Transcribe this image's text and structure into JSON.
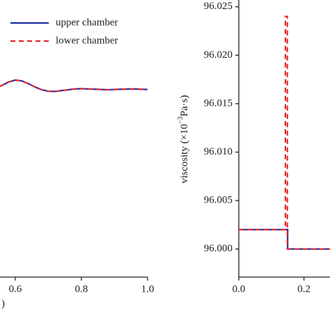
{
  "chart_data": [
    {
      "type": "line",
      "x_label": ")",
      "x": [
        0.554,
        0.56,
        0.58,
        0.6,
        0.62,
        0.64,
        0.66,
        0.68,
        0.7,
        0.72,
        0.74,
        0.76,
        0.78,
        0.8,
        0.84,
        0.88,
        0.92,
        0.96,
        1.0
      ],
      "series": [
        {
          "name": "upper chamber",
          "color": "#1f2fa8",
          "dash": "solid",
          "values": [
            68.8,
            69.2,
            70.4,
            71.1,
            70.8,
            69.8,
            68.6,
            67.6,
            67.1,
            67.0,
            67.3,
            67.6,
            67.9,
            68.0,
            67.8,
            67.6,
            67.8,
            67.9,
            67.7
          ]
        },
        {
          "name": "lower chamber",
          "color": "#e8262b",
          "dash": "dashed",
          "values": [
            68.8,
            69.2,
            70.4,
            71.1,
            70.8,
            69.8,
            68.6,
            67.6,
            67.1,
            67.0,
            67.3,
            67.6,
            67.9,
            68.0,
            67.8,
            67.6,
            67.8,
            67.9,
            67.7
          ]
        }
      ],
      "xlim": [
        0.554,
        1.0
      ],
      "xticks": [
        0.6,
        0.8,
        {
          "value": 1.0,
          "label": "1.0"
        }
      ],
      "ylim": [
        0,
        100
      ],
      "legend": "top-right"
    },
    {
      "type": "line",
      "y_label": "viscosity (×10",
      "y_label_exponent": "−3",
      "y_label_unit": "Pa·s)",
      "series": [
        {
          "name": "upper chamber",
          "color": "#1f2fa8",
          "dash": "solid",
          "x": [
            0,
            0.15,
            0.15,
            0.28
          ],
          "values": [
            96.002,
            96.002,
            96.0,
            96.0
          ]
        },
        {
          "name": "lower chamber",
          "color": "#e8262b",
          "dash": "dashed",
          "x": [
            0,
            0.143,
            0.143,
            0.149,
            0.149,
            0.28
          ],
          "values": [
            96.002,
            96.002,
            96.024,
            96.024,
            96.0,
            96.0
          ]
        }
      ],
      "xlim": [
        0,
        0.28
      ],
      "xticks": [
        {
          "value": 0,
          "label": "0.0"
        },
        0.2
      ],
      "ylim": [
        95.9971,
        96.0257
      ],
      "yticks": [
        {
          "value": 96.0,
          "label": "96.000"
        },
        {
          "value": 96.005,
          "label": "96.005"
        },
        {
          "value": 96.01,
          "label": "96.010"
        },
        {
          "value": 96.015,
          "label": "96.015"
        },
        {
          "value": 96.02,
          "label": "96.020"
        },
        {
          "value": 96.025,
          "label": "96.025"
        }
      ]
    }
  ]
}
